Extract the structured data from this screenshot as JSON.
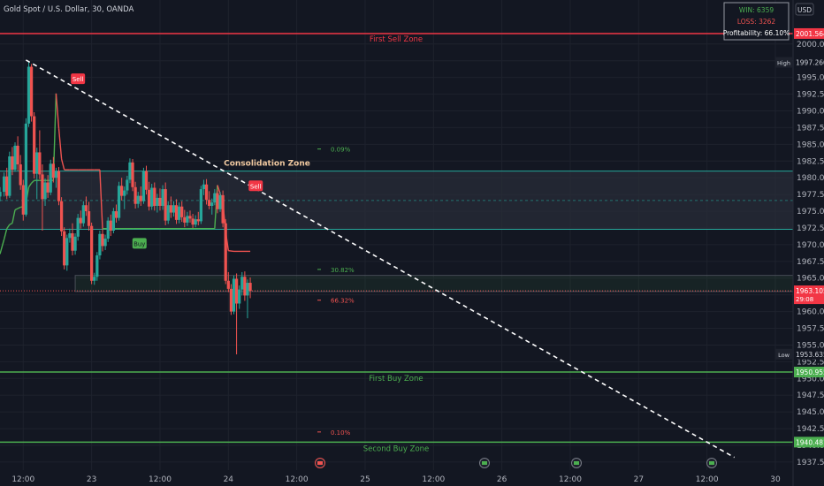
{
  "header": {
    "symbol_title": "Gold Spot / U.S. Dollar, 30, OANDA",
    "currency": "USD"
  },
  "stats": {
    "win": "WIN: 6359",
    "loss": "LOSS: 3262",
    "profitability": "Profitability: 66.10%"
  },
  "colors": {
    "background": "#131722",
    "up": "#26a69a",
    "down": "#ef5350",
    "sell_zone": "#f23645",
    "buy_zone": "#4caf50",
    "grid": "#1e222d",
    "consolidation_fill": "#2a2e39"
  },
  "zones": {
    "first_sell": {
      "label": "First Sell Zone",
      "price": 2001.564,
      "price_label": "2001.564"
    },
    "first_buy": {
      "label": "First Buy Zone",
      "price": 1950.955,
      "price_label": "1950.955"
    },
    "second_buy": {
      "label": "Second Buy Zone",
      "price": 1940.481,
      "price_label": "1940.481"
    },
    "consolidation": {
      "label": "Consolidation Zone",
      "top": 1981.0,
      "bottom": 1972.3,
      "mid": 1976.6
    }
  },
  "markers": {
    "high": {
      "label": "High",
      "price": 1997.26,
      "price_label": "1997.260"
    },
    "low": {
      "label": "Low",
      "price": 1953.635,
      "price_label": "1953.635"
    },
    "last": {
      "price": 1963.105,
      "price_label": "1963.105",
      "countdown": "29:08"
    }
  },
  "percent_labels": [
    {
      "text": "0.09%",
      "price": 1984.3,
      "color": "#4caf50"
    },
    {
      "text": "30.82%",
      "price": 1966.3,
      "color": "#4caf50"
    },
    {
      "text": "66.32%",
      "price": 1961.7,
      "color": "#ef5350"
    },
    {
      "text": "0.10%",
      "price": 1942.0,
      "color": "#ef5350"
    }
  ],
  "signals": [
    {
      "text": "Sell",
      "type": "sell",
      "time": 17.0,
      "price": 1986.8
    },
    {
      "text": "Sell",
      "type": "sell",
      "time": 22.9,
      "price": 1994.8
    },
    {
      "text": "Buy",
      "type": "buy",
      "time": 17.6,
      "price": 1968.5
    },
    {
      "text": "Buy",
      "type": "buy",
      "time": 23.35,
      "price": 1970.2
    },
    {
      "text": "Sell",
      "type": "sell",
      "time": 24.2,
      "price": 1978.8
    }
  ],
  "chart_data": {
    "type": "candlestick",
    "title": "Gold Spot / U.S. Dollar, 30, OANDA",
    "x_unit": "day of month (fractional)",
    "x_ticks": [
      {
        "label": "12:00",
        "t": 22.5
      },
      {
        "label": "23",
        "t": 23.0
      },
      {
        "label": "12:00",
        "t": 23.5
      },
      {
        "label": "24",
        "t": 24.0
      },
      {
        "label": "12:00",
        "t": 24.5
      },
      {
        "label": "25",
        "t": 25.0
      },
      {
        "label": "12:00",
        "t": 25.5
      },
      {
        "label": "26",
        "t": 26.0
      },
      {
        "label": "12:00",
        "t": 26.5
      },
      {
        "label": "27",
        "t": 27.0
      },
      {
        "label": "12:00",
        "t": 27.5
      },
      {
        "label": "30",
        "t": 28.0
      }
    ],
    "y_ticks": [
      "2000.000",
      "1997.500",
      "1995.000",
      "1992.500",
      "1990.000",
      "1987.500",
      "1985.000",
      "1982.500",
      "1980.000",
      "1977.500",
      "1975.000",
      "1972.500",
      "1970.000",
      "1967.500",
      "1965.000",
      "1962.500",
      "1960.000",
      "1957.500",
      "1955.000",
      "1952.500",
      "1950.000",
      "1947.500",
      "1945.000",
      "1942.500",
      "1940.000",
      "1937.500"
    ],
    "y_range": [
      1936.3,
      2004.2
    ],
    "x_range": [
      22.33,
      28.0
    ],
    "candles": [
      [
        22.33,
        1977.2,
        1978.6,
        1976.5,
        1977.9
      ],
      [
        22.36,
        1977.9,
        1980.8,
        1977.2,
        1980.2
      ],
      [
        22.38,
        1980.2,
        1981.5,
        1976.8,
        1977.3
      ],
      [
        22.4,
        1977.3,
        1983.9,
        1977.0,
        1983.2
      ],
      [
        22.42,
        1983.2,
        1984.6,
        1980.4,
        1981.2
      ],
      [
        22.44,
        1981.2,
        1985.3,
        1980.9,
        1984.8
      ],
      [
        22.46,
        1984.8,
        1986.2,
        1981.1,
        1982.0
      ],
      [
        22.48,
        1982.0,
        1983.4,
        1978.2,
        1978.9
      ],
      [
        22.5,
        1978.9,
        1979.7,
        1973.6,
        1974.5
      ],
      [
        22.52,
        1974.5,
        1988.9,
        1974.2,
        1988.1
      ],
      [
        22.54,
        1988.1,
        1997.3,
        1987.6,
        1996.6
      ],
      [
        22.56,
        1996.6,
        1997.0,
        1988.4,
        1989.2
      ],
      [
        22.58,
        1989.2,
        1989.8,
        1979.9,
        1980.6
      ],
      [
        22.6,
        1980.6,
        1984.5,
        1976.8,
        1983.8
      ],
      [
        22.62,
        1983.8,
        1987.1,
        1979.8,
        1980.5
      ],
      [
        22.64,
        1980.5,
        1982.0,
        1972.1,
        1976.8
      ],
      [
        22.66,
        1976.8,
        1979.9,
        1975.8,
        1979.3
      ],
      [
        22.68,
        1979.3,
        1980.4,
        1977.0,
        1977.8
      ],
      [
        22.7,
        1977.8,
        1982.7,
        1977.4,
        1982.1
      ],
      [
        22.72,
        1982.1,
        1983.1,
        1979.3,
        1980.0
      ],
      [
        22.74,
        1980.0,
        1981.5,
        1978.5,
        1981.0
      ],
      [
        22.76,
        1981.0,
        1981.6,
        1975.9,
        1976.5
      ],
      [
        22.78,
        1976.5,
        1977.1,
        1971.3,
        1972.0
      ],
      [
        22.8,
        1972.0,
        1972.6,
        1966.3,
        1966.9
      ],
      [
        22.82,
        1966.9,
        1971.5,
        1966.1,
        1971.0
      ],
      [
        22.84,
        1971.0,
        1972.4,
        1970.3,
        1971.7
      ],
      [
        22.86,
        1971.7,
        1973.2,
        1968.4,
        1969.1
      ],
      [
        22.88,
        1969.1,
        1971.7,
        1968.5,
        1971.2
      ],
      [
        22.9,
        1971.2,
        1974.6,
        1970.6,
        1974.0
      ],
      [
        22.92,
        1974.0,
        1975.1,
        1972.4,
        1973.2
      ],
      [
        22.94,
        1973.2,
        1976.5,
        1972.7,
        1975.9
      ],
      [
        22.96,
        1975.9,
        1977.2,
        1974.3,
        1975.0
      ],
      [
        22.98,
        1975.0,
        1976.4,
        1972.1,
        1972.8
      ],
      [
        23.0,
        1972.8,
        1973.3,
        1964.1,
        1964.6
      ],
      [
        23.02,
        1964.6,
        1965.8,
        1964.0,
        1965.2
      ],
      [
        23.04,
        1965.2,
        1968.9,
        1964.6,
        1968.4
      ],
      [
        23.06,
        1968.4,
        1972.1,
        1967.8,
        1971.6
      ],
      [
        23.08,
        1971.6,
        1972.4,
        1969.0,
        1969.8
      ],
      [
        23.1,
        1969.8,
        1971.5,
        1969.2,
        1970.9
      ],
      [
        23.12,
        1970.9,
        1974.1,
        1970.4,
        1973.6
      ],
      [
        23.14,
        1973.6,
        1974.5,
        1971.3,
        1972.1
      ],
      [
        23.16,
        1972.1,
        1975.5,
        1971.7,
        1975.0
      ],
      [
        23.18,
        1975.0,
        1976.0,
        1973.3,
        1974.0
      ],
      [
        23.2,
        1974.0,
        1979.4,
        1973.6,
        1978.8
      ],
      [
        23.22,
        1978.8,
        1980.0,
        1976.6,
        1977.3
      ],
      [
        23.24,
        1977.3,
        1978.7,
        1975.3,
        1978.1
      ],
      [
        23.26,
        1978.1,
        1980.3,
        1977.5,
        1979.7
      ],
      [
        23.28,
        1979.7,
        1982.9,
        1979.2,
        1982.3
      ],
      [
        23.3,
        1982.3,
        1982.8,
        1978.0,
        1978.6
      ],
      [
        23.32,
        1978.6,
        1979.4,
        1975.4,
        1976.1
      ],
      [
        23.34,
        1976.1,
        1977.9,
        1975.5,
        1977.3
      ],
      [
        23.36,
        1977.3,
        1978.7,
        1975.8,
        1976.5
      ],
      [
        23.38,
        1976.5,
        1981.5,
        1976.1,
        1981.0
      ],
      [
        23.4,
        1981.0,
        1981.8,
        1977.5,
        1978.2
      ],
      [
        23.42,
        1978.2,
        1979.4,
        1975.1,
        1975.7
      ],
      [
        23.44,
        1975.7,
        1979.1,
        1975.2,
        1978.5
      ],
      [
        23.46,
        1978.5,
        1979.3,
        1975.1,
        1975.8
      ],
      [
        23.48,
        1975.8,
        1977.6,
        1974.8,
        1977.0
      ],
      [
        23.5,
        1977.0,
        1978.4,
        1975.1,
        1975.8
      ],
      [
        23.52,
        1975.8,
        1978.9,
        1975.2,
        1978.3
      ],
      [
        23.54,
        1978.3,
        1979.3,
        1972.9,
        1973.6
      ],
      [
        23.56,
        1973.6,
        1976.5,
        1973.1,
        1975.9
      ],
      [
        23.58,
        1975.9,
        1977.2,
        1974.0,
        1974.8
      ],
      [
        23.6,
        1974.8,
        1976.5,
        1974.2,
        1975.9
      ],
      [
        23.62,
        1975.9,
        1976.8,
        1973.1,
        1973.7
      ],
      [
        23.64,
        1973.7,
        1976.3,
        1973.2,
        1975.7
      ],
      [
        23.66,
        1975.7,
        1976.5,
        1973.4,
        1974.1
      ],
      [
        23.68,
        1974.1,
        1975.2,
        1972.6,
        1973.3
      ],
      [
        23.7,
        1973.3,
        1974.9,
        1972.8,
        1974.3
      ],
      [
        23.72,
        1974.3,
        1975.1,
        1973.3,
        1973.9
      ],
      [
        23.74,
        1973.9,
        1974.6,
        1972.5,
        1973.0
      ],
      [
        23.76,
        1973.0,
        1974.4,
        1972.6,
        1973.8
      ],
      [
        23.78,
        1973.8,
        1974.9,
        1972.9,
        1973.5
      ],
      [
        23.8,
        1973.5,
        1978.8,
        1973.1,
        1978.3
      ],
      [
        23.82,
        1978.3,
        1979.7,
        1977.4,
        1979.0
      ],
      [
        23.84,
        1979.0,
        1979.8,
        1976.0,
        1976.7
      ],
      [
        23.86,
        1976.7,
        1978.0,
        1975.3,
        1975.8
      ],
      [
        23.88,
        1975.8,
        1976.9,
        1974.5,
        1976.3
      ],
      [
        23.9,
        1976.3,
        1978.3,
        1975.9,
        1977.7
      ],
      [
        23.92,
        1977.7,
        1978.2,
        1974.7,
        1975.3
      ],
      [
        23.94,
        1975.3,
        1977.9,
        1974.9,
        1977.4
      ],
      [
        23.96,
        1977.4,
        1978.1,
        1972.6,
        1973.2
      ],
      [
        23.98,
        1973.2,
        1973.8,
        1964.1,
        1964.6
      ],
      [
        24.0,
        1964.6,
        1965.9,
        1962.9,
        1963.4
      ],
      [
        24.02,
        1963.4,
        1964.1,
        1959.5,
        1960.0
      ],
      [
        24.04,
        1960.0,
        1965.4,
        1959.6,
        1964.9
      ],
      [
        24.06,
        1964.9,
        1965.7,
        1953.6,
        1961.2
      ],
      [
        24.08,
        1961.2,
        1963.9,
        1960.4,
        1963.3
      ],
      [
        24.1,
        1963.3,
        1965.9,
        1962.4,
        1965.2
      ],
      [
        24.12,
        1965.2,
        1966.0,
        1961.6,
        1962.4
      ],
      [
        24.14,
        1962.4,
        1964.8,
        1959.0,
        1964.3
      ],
      [
        24.16,
        1964.3,
        1965.1,
        1962.0,
        1963.1
      ]
    ],
    "trendline": {
      "from": [
        22.52,
        1997.6
      ],
      "to": [
        27.7,
        1938.2
      ],
      "style": "dashed",
      "color": "#ffffff"
    },
    "indicator_line": {
      "color_up": "#4caf50",
      "color_down": "#ef5350",
      "points": [
        [
          22.33,
          1968.6,
          "up"
        ],
        [
          22.36,
          1970.8,
          "up"
        ],
        [
          22.38,
          1972.4,
          "up"
        ],
        [
          22.4,
          1973.0,
          "up"
        ],
        [
          22.42,
          1973.2,
          "up"
        ],
        [
          22.44,
          1975.2,
          "up"
        ],
        [
          22.46,
          1975.4,
          "up"
        ],
        [
          22.48,
          1975.6,
          "up"
        ],
        [
          22.5,
          1975.7,
          "up"
        ],
        [
          22.52,
          1976.2,
          "up"
        ],
        [
          22.54,
          1978.6,
          "up"
        ],
        [
          22.56,
          1979.2,
          "up"
        ],
        [
          22.58,
          1979.6,
          "up"
        ],
        [
          22.6,
          1979.6,
          "up"
        ],
        [
          22.62,
          1979.6,
          "up"
        ],
        [
          22.64,
          1979.6,
          "up"
        ],
        [
          22.66,
          1979.6,
          "up"
        ],
        [
          22.68,
          1979.6,
          "up"
        ],
        [
          22.7,
          1979.6,
          "up"
        ],
        [
          22.72,
          1979.6,
          "up"
        ],
        [
          22.74,
          1992.6,
          "down"
        ],
        [
          22.76,
          1987.4,
          "down"
        ],
        [
          22.78,
          1982.8,
          "down"
        ],
        [
          22.8,
          1981.2,
          "down"
        ],
        [
          22.84,
          1981.2,
          "down"
        ],
        [
          22.9,
          1981.2,
          "down"
        ],
        [
          22.96,
          1981.2,
          "down"
        ],
        [
          23.02,
          1981.2,
          "down"
        ],
        [
          23.06,
          1981.2,
          "down"
        ],
        [
          23.08,
          1972.4,
          "up"
        ],
        [
          23.3,
          1972.4,
          "up"
        ],
        [
          23.5,
          1972.4,
          "up"
        ],
        [
          23.7,
          1972.4,
          "up"
        ],
        [
          23.9,
          1972.4,
          "up"
        ],
        [
          23.92,
          1978.9,
          "down"
        ],
        [
          23.96,
          1976.3,
          "down"
        ],
        [
          23.98,
          1972.0,
          "down"
        ],
        [
          24.0,
          1969.1,
          "down"
        ],
        [
          24.04,
          1969.0,
          "down"
        ],
        [
          24.16,
          1969.0,
          "down"
        ]
      ]
    },
    "range_box": {
      "t_start": 22.88,
      "t_end": 28.0,
      "top": 1965.4,
      "bottom": 1963.0
    }
  }
}
